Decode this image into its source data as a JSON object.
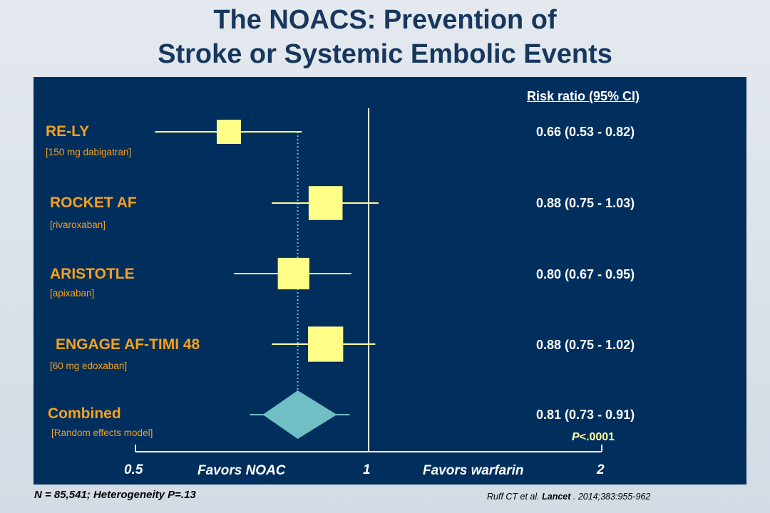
{
  "title_line1": "The NOACS: Prevention of",
  "title_line2": "Stroke or Systemic Embolic Events",
  "colors": {
    "panel_bg": "#002e5d",
    "title": "#17375e",
    "study_label": "#f5a21b",
    "ci_line": "#ffff99",
    "box": "#ffff88",
    "diamond": "#6fbfc4",
    "combined_ref_line": "#5ec8d4",
    "null_line": "#ffffff",
    "p_value": "#ffff99"
  },
  "rr_header": "Risk ratio (95% CI)",
  "studies": [
    {
      "name": "RE-LY",
      "sub": "[150 mg dabigatran]",
      "rr_text": "0.66 (0.53 - 0.82)"
    },
    {
      "name": "ROCKET AF",
      "sub": "[rivaroxaban]",
      "rr_text": "0.88 (0.75 - 1.03)"
    },
    {
      "name": "ARISTOTLE",
      "sub": "[apixaban]",
      "rr_text": "0.80 (0.67 - 0.95)"
    },
    {
      "name": "ENGAGE AF-TIMI 48",
      "sub": "[60 mg edoxaban]",
      "rr_text": "0.88 (0.75 - 1.02)"
    },
    {
      "name": "Combined",
      "sub": "[Random effects model]",
      "rr_text": "0.81 (0.73 - 0.91)"
    }
  ],
  "p_value": {
    "prefix": "P",
    "rest": "<.0001"
  },
  "axis": {
    "tick_labels": [
      "0.5",
      "1",
      "2"
    ],
    "favors_left": "Favors NOAC",
    "favors_right": "Favors warfarin"
  },
  "footer_left": "N = 85,541; Heterogeneity P=.13",
  "footer_right_pre": "Ruff CT et al. ",
  "footer_right_journal": "Lancet",
  "footer_right_post": " . 2014;383:955-962",
  "chart_data": {
    "type": "forest",
    "scale": "log",
    "xlim": [
      0.5,
      2
    ],
    "ticks": [
      0.5,
      1,
      2
    ],
    "null_value": 1,
    "series": [
      {
        "name": "RE-LY",
        "rr": 0.66,
        "lower": 0.53,
        "upper": 0.82,
        "weight": 1.0
      },
      {
        "name": "ROCKET AF",
        "rr": 0.88,
        "lower": 0.75,
        "upper": 1.03,
        "weight": 1.4
      },
      {
        "name": "ARISTOTLE",
        "rr": 0.8,
        "lower": 0.67,
        "upper": 0.95,
        "weight": 1.3
      },
      {
        "name": "ENGAGE AF-TIMI 48",
        "rr": 0.88,
        "lower": 0.75,
        "upper": 1.02,
        "weight": 1.45
      }
    ],
    "combined": {
      "name": "Combined",
      "rr": 0.81,
      "lower": 0.73,
      "upper": 0.91
    }
  }
}
